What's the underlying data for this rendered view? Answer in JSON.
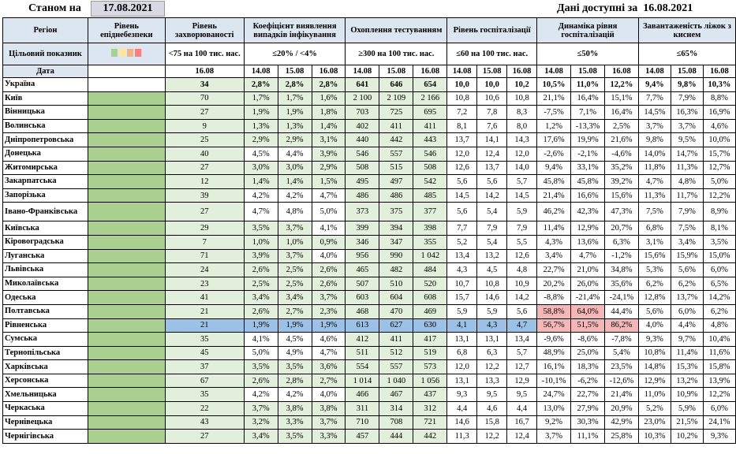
{
  "asof_label": "Станом на",
  "asof_date": "17.08.2021",
  "available_label": "Дані доступні за",
  "available_date": "16.08.2021",
  "headers": {
    "region": "Регіон",
    "epid": "Рівень епіднебезпеки",
    "incidence": "Рівень захворюваності",
    "positivity": "Коефіцієнт виявлення випадків інфікування",
    "testing": "Охоплення тестуванням",
    "hosp": "Рівень госпіталізації",
    "hosp_dyn": "Динаміка рівня госпіталізацій",
    "oxygen": "Завантаженість ліжок з киснем",
    "target_label": "Цільовий показник",
    "t_incidence": "<75 на 100 тис. нас.",
    "t_positivity": "≤20% / <4%",
    "t_testing": "≥300 на 100 тис. нас.",
    "t_hosp": "≤60 на 100 тис. нас.",
    "t_hosp_dyn": "≤50%",
    "t_oxygen": "≤65%",
    "date_label": "Дата",
    "d_single": "16.08",
    "d1": "14.08",
    "d2": "15.08",
    "d3": "16.08"
  },
  "swatch_colors": [
    "#a9d08e",
    "#ffe699",
    "#f4b183",
    "#ff7c7c"
  ],
  "rows": [
    {
      "region": "Україна",
      "epid": "",
      "inc": "34",
      "pos": [
        "2,8%",
        "2,8%",
        "2,8%"
      ],
      "test": [
        "641",
        "646",
        "654"
      ],
      "hosp": [
        "10,0",
        "10,0",
        "10,2"
      ],
      "dyn": [
        "10,5%",
        "11,0%",
        "12,2%"
      ],
      "oxy": [
        "9,4%",
        "9,8%",
        "10,3%"
      ]
    },
    {
      "region": "Київ",
      "epid": "",
      "inc": "70",
      "pos": [
        "1,7%",
        "1,7%",
        "1,6%"
      ],
      "test": [
        "2 100",
        "2 109",
        "2 166"
      ],
      "hosp": [
        "10,8",
        "10,6",
        "10,8"
      ],
      "dyn": [
        "21,1%",
        "16,4%",
        "15,1%"
      ],
      "oxy": [
        "7,7%",
        "7,9%",
        "8,8%"
      ]
    },
    {
      "region": "Вінницька",
      "epid": "",
      "inc": "27",
      "pos": [
        "1,9%",
        "1,9%",
        "1,8%"
      ],
      "test": [
        "703",
        "725",
        "695"
      ],
      "hosp": [
        "7,2",
        "7,8",
        "8,3"
      ],
      "dyn": [
        "-7,5%",
        "7,1%",
        "16,4%"
      ],
      "oxy": [
        "14,5%",
        "16,3%",
        "16,9%"
      ]
    },
    {
      "region": "Волинська",
      "epid": "",
      "inc": "9",
      "pos": [
        "1,3%",
        "1,3%",
        "1,4%"
      ],
      "test": [
        "402",
        "411",
        "411"
      ],
      "hosp": [
        "8,1",
        "7,6",
        "8,0"
      ],
      "dyn": [
        "1,2%",
        "-13,3%",
        "2,5%"
      ],
      "oxy": [
        "3,7%",
        "3,7%",
        "4,6%"
      ]
    },
    {
      "region": "Дніпропетровська",
      "epid": "",
      "inc": "25",
      "pos": [
        "2,9%",
        "2,9%",
        "3,1%"
      ],
      "test": [
        "440",
        "442",
        "443"
      ],
      "hosp": [
        "13,7",
        "14,1",
        "14,3"
      ],
      "dyn": [
        "17,6%",
        "19,9%",
        "21,6%"
      ],
      "oxy": [
        "9,8%",
        "9,5%",
        "10,0%"
      ]
    },
    {
      "region": "Донецька",
      "epid": "",
      "inc": "40",
      "pos": [
        "4,5%",
        "4,4%",
        "3,9%"
      ],
      "test": [
        "546",
        "557",
        "546"
      ],
      "hosp": [
        "12,0",
        "12,4",
        "12,0"
      ],
      "dyn": [
        "-2,6%",
        "-2,1%",
        "-4,6%"
      ],
      "oxy": [
        "14,0%",
        "14,7%",
        "15,7%"
      ]
    },
    {
      "region": "Житомирська",
      "epid": "",
      "inc": "27",
      "pos": [
        "3,0%",
        "3,0%",
        "2,9%"
      ],
      "test": [
        "508",
        "515",
        "508"
      ],
      "hosp": [
        "12,6",
        "13,7",
        "14,0"
      ],
      "dyn": [
        "9,4%",
        "33,1%",
        "35,2%"
      ],
      "oxy": [
        "11,8%",
        "11,3%",
        "12,7%"
      ]
    },
    {
      "region": "Закарпатська",
      "epid": "",
      "inc": "12",
      "pos": [
        "1,4%",
        "1,4%",
        "1,5%"
      ],
      "test": [
        "495",
        "497",
        "542"
      ],
      "hosp": [
        "5,6",
        "5,6",
        "5,7"
      ],
      "dyn": [
        "45,8%",
        "45,8%",
        "39,2%"
      ],
      "oxy": [
        "4,7%",
        "4,8%",
        "5,0%"
      ]
    },
    {
      "region": "Запорізька",
      "epid": "",
      "inc": "39",
      "pos": [
        "4,2%",
        "4,2%",
        "4,7%"
      ],
      "test": [
        "486",
        "486",
        "485"
      ],
      "hosp": [
        "14,5",
        "14,2",
        "14,5"
      ],
      "dyn": [
        "21,4%",
        "16,6%",
        "15,6%"
      ],
      "oxy": [
        "11,3%",
        "11,7%",
        "12,2%"
      ]
    },
    {
      "region": "Івано-Франківська",
      "epid": "",
      "inc": "27",
      "pos": [
        "4,7%",
        "4,8%",
        "5,0%"
      ],
      "test": [
        "373",
        "375",
        "377"
      ],
      "hosp": [
        "5,6",
        "5,4",
        "5,9"
      ],
      "dyn": [
        "46,2%",
        "42,3%",
        "47,3%"
      ],
      "oxy": [
        "7,5%",
        "7,9%",
        "8,9%"
      ]
    },
    {
      "region": "Київська",
      "epid": "",
      "inc": "29",
      "pos": [
        "3,5%",
        "3,7%",
        "4,1%"
      ],
      "test": [
        "399",
        "394",
        "398"
      ],
      "hosp": [
        "7,7",
        "7,9",
        "7,9"
      ],
      "dyn": [
        "11,4%",
        "12,9%",
        "20,7%"
      ],
      "oxy": [
        "6,8%",
        "7,5%",
        "8,1%"
      ]
    },
    {
      "region": "Кіровоградська",
      "epid": "",
      "inc": "7",
      "pos": [
        "1,0%",
        "1,0%",
        "0,9%"
      ],
      "test": [
        "346",
        "347",
        "355"
      ],
      "hosp": [
        "5,2",
        "5,4",
        "5,5"
      ],
      "dyn": [
        "4,3%",
        "13,6%",
        "6,3%"
      ],
      "oxy": [
        "3,1%",
        "3,4%",
        "3,5%"
      ]
    },
    {
      "region": "Луганська",
      "epid": "",
      "inc": "71",
      "pos": [
        "3,9%",
        "3,7%",
        "4,0%"
      ],
      "test": [
        "956",
        "990",
        "1 042"
      ],
      "hosp": [
        "13,4",
        "13,2",
        "12,6"
      ],
      "dyn": [
        "3,4%",
        "4,7%",
        "-1,2%"
      ],
      "oxy": [
        "15,6%",
        "15,9%",
        "15,0%"
      ]
    },
    {
      "region": "Львівська",
      "epid": "",
      "inc": "24",
      "pos": [
        "2,6%",
        "2,5%",
        "2,6%"
      ],
      "test": [
        "465",
        "482",
        "484"
      ],
      "hosp": [
        "4,3",
        "4,5",
        "4,8"
      ],
      "dyn": [
        "22,7%",
        "21,0%",
        "34,8%"
      ],
      "oxy": [
        "5,3%",
        "5,6%",
        "6,0%"
      ]
    },
    {
      "region": "Миколаївська",
      "epid": "",
      "inc": "23",
      "pos": [
        "2,5%",
        "2,5%",
        "2,6%"
      ],
      "test": [
        "507",
        "510",
        "520"
      ],
      "hosp": [
        "10,7",
        "10,8",
        "10,9"
      ],
      "dyn": [
        "20,2%",
        "26,0%",
        "35,6%"
      ],
      "oxy": [
        "6,2%",
        "6,2%",
        "6,5%"
      ]
    },
    {
      "region": "Одеська",
      "epid": "",
      "inc": "41",
      "pos": [
        "3,4%",
        "3,4%",
        "3,7%"
      ],
      "test": [
        "603",
        "604",
        "608"
      ],
      "hosp": [
        "15,7",
        "14,6",
        "14,2"
      ],
      "dyn": [
        "-8,8%",
        "-21,4%",
        "-24,1%"
      ],
      "oxy": [
        "12,8%",
        "13,7%",
        "14,2%"
      ]
    },
    {
      "region": "Полтавська",
      "epid": "",
      "inc": "21",
      "pos": [
        "2,6%",
        "2,7%",
        "2,3%"
      ],
      "test": [
        "468",
        "470",
        "469"
      ],
      "hosp": [
        "5,9",
        "5,9",
        "5,6"
      ],
      "dyn": [
        "58,8%",
        "64,0%",
        "44,4%"
      ],
      "oxy": [
        "5,6%",
        "6,0%",
        "6,2%"
      ]
    },
    {
      "region": "Рівненська",
      "epid": "",
      "inc": "21",
      "pos": [
        "1,9%",
        "1,9%",
        "1,9%"
      ],
      "test": [
        "613",
        "627",
        "630"
      ],
      "hosp": [
        "4,1",
        "4,3",
        "4,7"
      ],
      "dyn": [
        "56,7%",
        "51,5%",
        "86,2%"
      ],
      "oxy": [
        "4,0%",
        "4,4%",
        "4,8%"
      ]
    },
    {
      "region": "Сумська",
      "epid": "",
      "inc": "35",
      "pos": [
        "4,1%",
        "4,5%",
        "4,6%"
      ],
      "test": [
        "412",
        "411",
        "417"
      ],
      "hosp": [
        "13,1",
        "13,1",
        "13,4"
      ],
      "dyn": [
        "-9,6%",
        "-8,6%",
        "-7,8%"
      ],
      "oxy": [
        "9,3%",
        "9,7%",
        "10,4%"
      ]
    },
    {
      "region": "Тернопільська",
      "epid": "",
      "inc": "45",
      "pos": [
        "5,0%",
        "4,9%",
        "4,7%"
      ],
      "test": [
        "511",
        "512",
        "519"
      ],
      "hosp": [
        "6,8",
        "6,3",
        "5,7"
      ],
      "dyn": [
        "48,9%",
        "25,0%",
        "5,4%"
      ],
      "oxy": [
        "10,8%",
        "11,4%",
        "11,6%"
      ]
    },
    {
      "region": "Харківська",
      "epid": "",
      "inc": "37",
      "pos": [
        "3,5%",
        "3,5%",
        "3,6%"
      ],
      "test": [
        "554",
        "557",
        "573"
      ],
      "hosp": [
        "12,0",
        "12,2",
        "12,7"
      ],
      "dyn": [
        "16,1%",
        "18,3%",
        "23,5%"
      ],
      "oxy": [
        "14,8%",
        "15,3%",
        "15,8%"
      ]
    },
    {
      "region": "Херсонська",
      "epid": "",
      "inc": "67",
      "pos": [
        "2,6%",
        "2,8%",
        "2,7%"
      ],
      "test": [
        "1 014",
        "1 040",
        "1 056"
      ],
      "hosp": [
        "13,1",
        "13,3",
        "12,9"
      ],
      "dyn": [
        "-10,1%",
        "-6,2%",
        "-12,6%"
      ],
      "oxy": [
        "12,9%",
        "13,2%",
        "13,9%"
      ]
    },
    {
      "region": "Хмельницька",
      "epid": "",
      "inc": "35",
      "pos": [
        "4,2%",
        "4,2%",
        "4,0%"
      ],
      "test": [
        "466",
        "467",
        "437"
      ],
      "hosp": [
        "9,3",
        "9,5",
        "9,5"
      ],
      "dyn": [
        "24,7%",
        "22,7%",
        "21,4%"
      ],
      "oxy": [
        "11,0%",
        "10,9%",
        "12,2%"
      ]
    },
    {
      "region": "Черкаська",
      "epid": "",
      "inc": "22",
      "pos": [
        "3,7%",
        "3,8%",
        "3,8%"
      ],
      "test": [
        "311",
        "314",
        "312"
      ],
      "hosp": [
        "4,4",
        "4,6",
        "4,4"
      ],
      "dyn": [
        "13,0%",
        "27,9%",
        "20,9%"
      ],
      "oxy": [
        "5,2%",
        "5,9%",
        "6,0%"
      ]
    },
    {
      "region": "Чернівецька",
      "epid": "",
      "inc": "43",
      "pos": [
        "3,2%",
        "3,3%",
        "3,7%"
      ],
      "test": [
        "710",
        "708",
        "721"
      ],
      "hosp": [
        "14,6",
        "15,8",
        "16,7"
      ],
      "dyn": [
        "9,2%",
        "30,3%",
        "42,9%"
      ],
      "oxy": [
        "23,0%",
        "21,5%",
        "24,1%"
      ]
    },
    {
      "region": "Чернігівська",
      "epid": "",
      "inc": "27",
      "pos": [
        "3,4%",
        "3,5%",
        "3,3%"
      ],
      "test": [
        "457",
        "444",
        "442"
      ],
      "hosp": [
        "11,3",
        "12,2",
        "12,4"
      ],
      "dyn": [
        "3,7%",
        "11,1%",
        "25,8%"
      ],
      "oxy": [
        "10,3%",
        "10,2%",
        "9,3%"
      ]
    }
  ]
}
